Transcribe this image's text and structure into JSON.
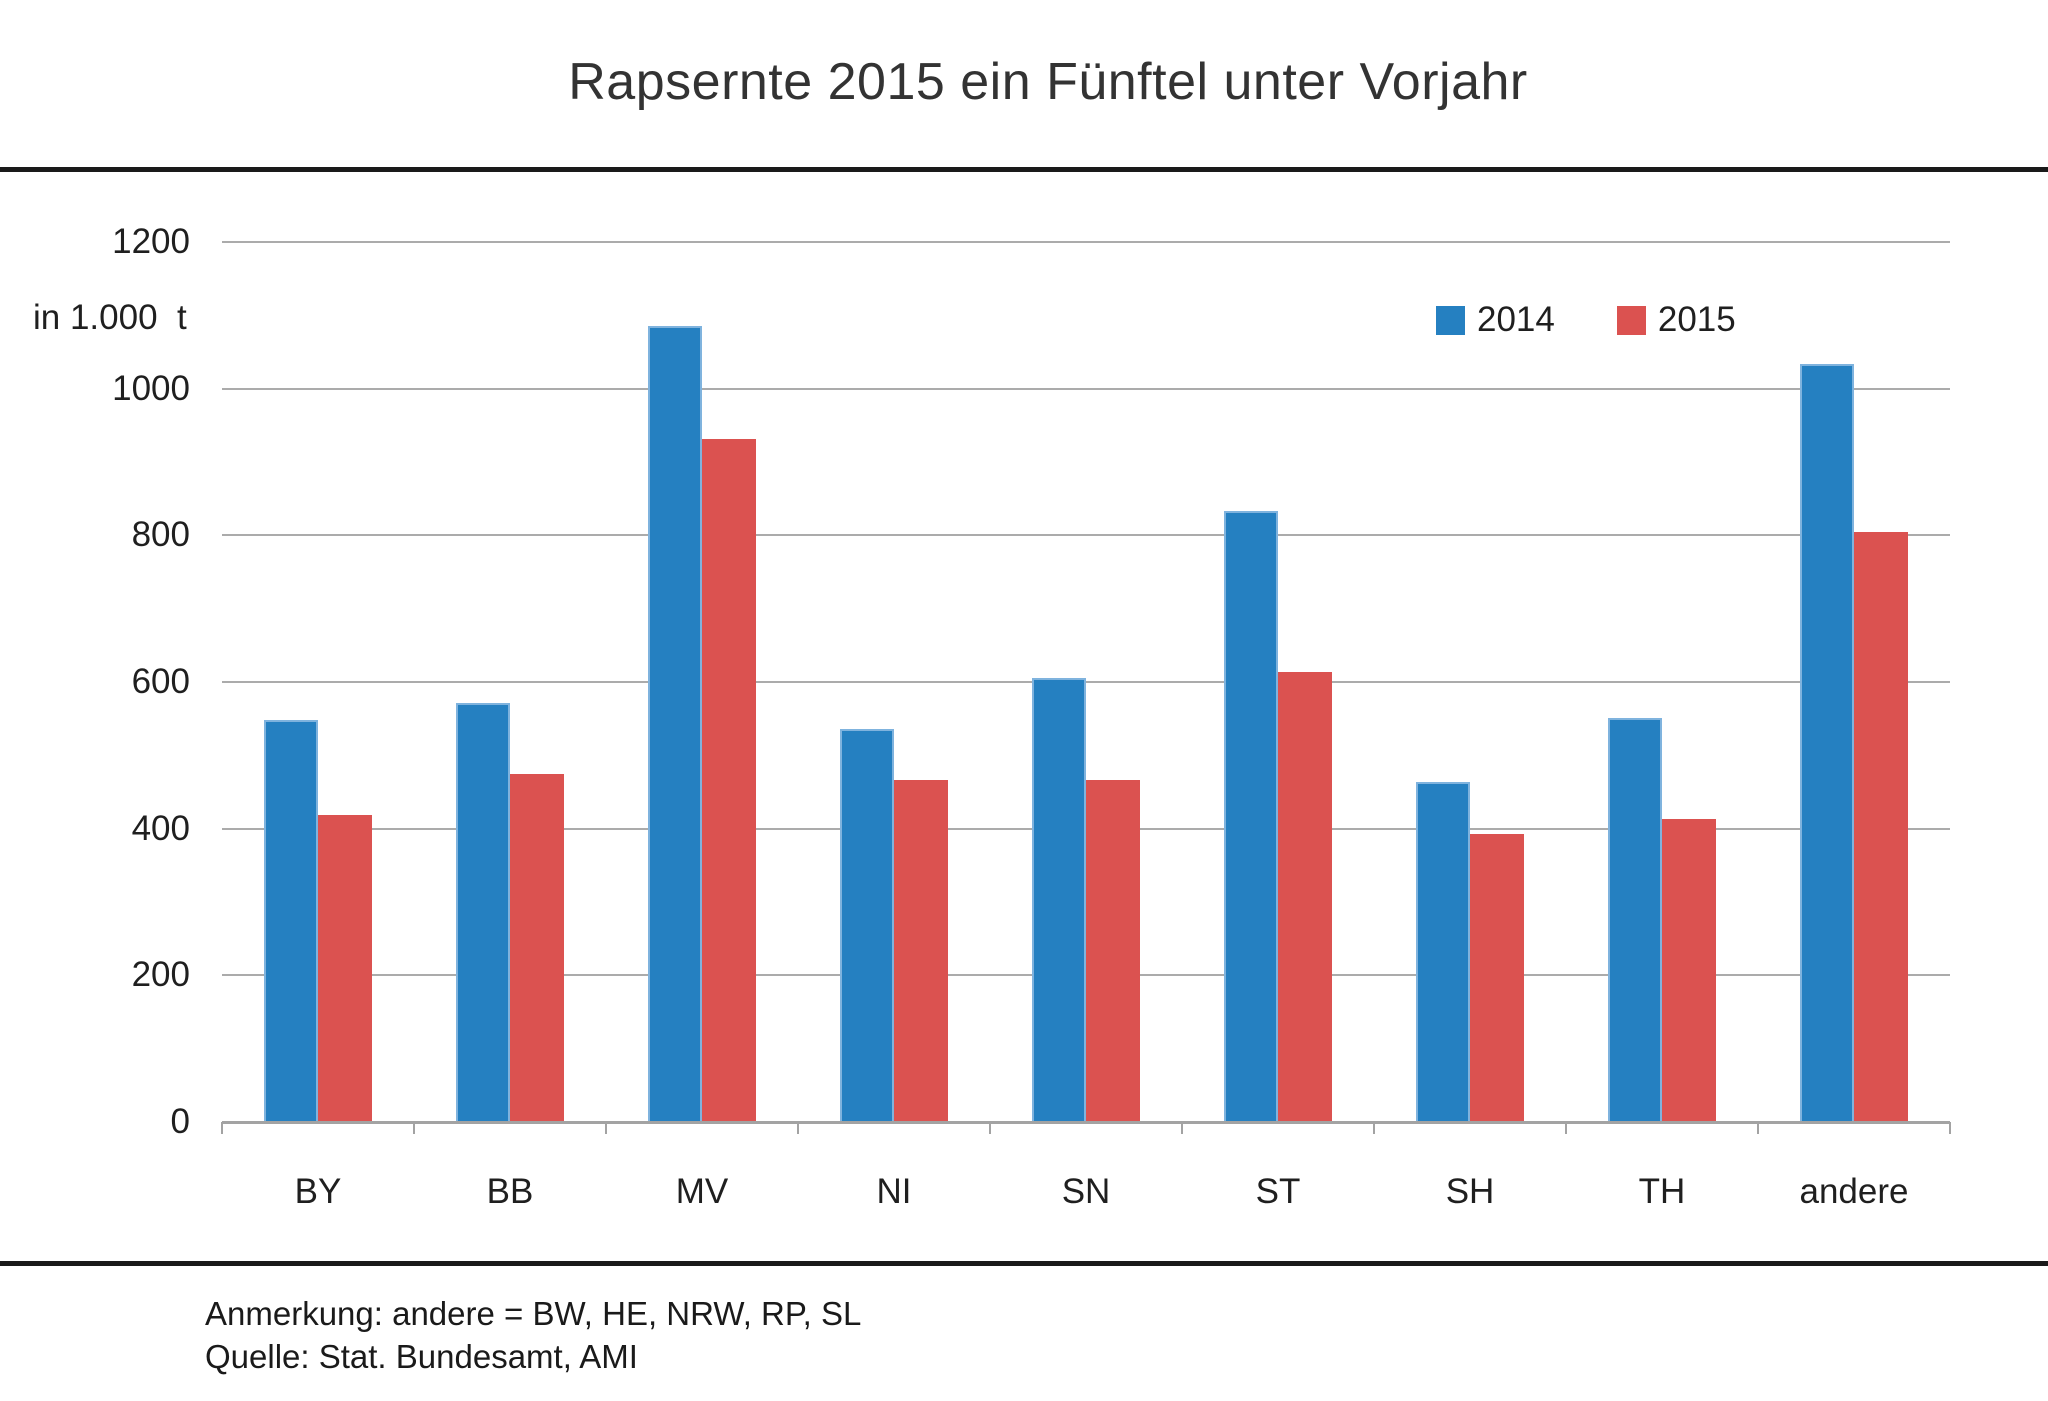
{
  "title": "Rapsernte 2015 ein Fünftel unter Vorjahr",
  "footnotes": {
    "note": "Anmerkung: andere = BW, HE, NRW, RP, SL",
    "source": "Quelle: Stat. Bundesamt, AMI"
  },
  "colors": {
    "series_2014": "#2580C1",
    "series_2014_border": "#7FB3DE",
    "series_2015": "#DB5250",
    "gridline": "#ABABAB",
    "axis": "#A3A3A3",
    "rule": "#1A1A1A",
    "text": "#1F1F1F"
  },
  "chart_data": {
    "type": "bar",
    "title": "Rapsernte 2015 ein Fünftel unter Vorjahr",
    "unit_label": "in 1.000  t",
    "xlabel": "",
    "ylabel": "in 1.000 t",
    "categories": [
      "BY",
      "BB",
      "MV",
      "NI",
      "SN",
      "ST",
      "SH",
      "TH",
      "andere"
    ],
    "series": [
      {
        "name": "2014",
        "color": "#2580C1",
        "values": [
          548,
          572,
          1085,
          536,
          606,
          833,
          463,
          551,
          1033
        ]
      },
      {
        "name": "2015",
        "color": "#DB5250",
        "values": [
          418,
          475,
          932,
          467,
          467,
          614,
          393,
          413,
          805
        ]
      }
    ],
    "ylim": [
      0,
      1200
    ],
    "yticks": [
      1200,
      1000,
      800,
      600,
      400,
      200,
      0
    ],
    "grid": true,
    "legend_position": "top-right"
  }
}
